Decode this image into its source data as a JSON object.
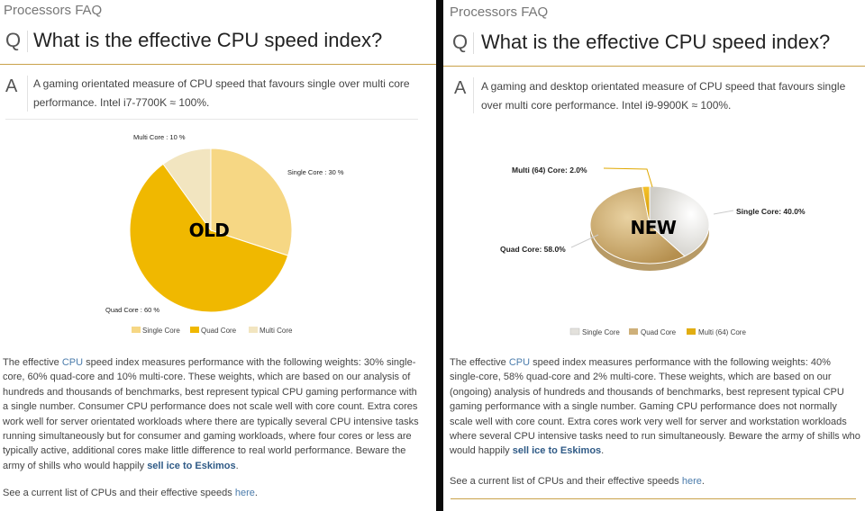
{
  "left": {
    "section_title": "Processors FAQ",
    "q_letter": "Q",
    "question": "What is the effective CPU speed index?",
    "a_letter": "A",
    "answer": "A gaming orientated measure of CPU speed that favours single over multi core performance. Intel i7-7700K ≈ 100%.",
    "chart_data": {
      "type": "pie",
      "title": "",
      "stamp": "OLD",
      "categories": [
        "Single Core",
        "Quad Core",
        "Multi Core"
      ],
      "values": [
        30,
        60,
        10
      ],
      "slice_labels": [
        "Single Core : 30 %",
        "Quad Core : 60 %",
        "Multi Core : 10 %"
      ],
      "legend": [
        "Single Core",
        "Quad Core",
        "Multi Core"
      ],
      "legend_position": "bottom",
      "colors": [
        "#f6d784",
        "#f0b800",
        "#f2e5c0"
      ]
    },
    "para_pre": "The effective ",
    "para_cpu": "CPU",
    "para_mid": " speed index measures performance with the following weights: 30% single-core, 60% quad-core and 10% multi-core. These weights, which are based on our analysis of hundreds and thousands of benchmarks, best represent typical CPU gaming performance with a single number. Consumer CPU performance does not scale well with core count. Extra cores work well for server orientated workloads where there are typically several CPU intensive tasks running simultaneously but for consumer and gaming workloads, where four cores or less are typically active, additional cores make little difference to real world performance. Beware the army of shills who would happily ",
    "para_link": "sell ice to Eskimos",
    "para_end": ".",
    "footer_pre": "See a current list of CPUs and their effective speeds ",
    "footer_link": "here",
    "footer_end": "."
  },
  "right": {
    "section_title": "Processors FAQ",
    "q_letter": "Q",
    "question": "What is the effective CPU speed index?",
    "a_letter": "A",
    "answer": "A gaming and desktop orientated measure of CPU speed that favours single over multi core performance. Intel i9-9900K ≈ 100%.",
    "chart_data": {
      "type": "pie",
      "title": "",
      "stamp": "NEW",
      "categories": [
        "Single Core",
        "Quad Core",
        "Multi (64) Core"
      ],
      "values": [
        40.0,
        58.0,
        2.0
      ],
      "slice_labels": [
        "Single Core: 40.0%",
        "Quad Core: 58.0%",
        "Multi (64) Core: 2.0%"
      ],
      "legend": [
        "Single Core",
        "Quad Core",
        "Multi (64) Core"
      ],
      "legend_position": "bottom",
      "colors": [
        "#e3e1dc",
        "#ceb07a",
        "#e1ad12"
      ]
    },
    "para_pre": "The effective ",
    "para_cpu": "CPU",
    "para_mid": " speed index measures performance with the following weights: 40% single-core, 58% quad-core and 2% multi-core. These weights, which are based on our (ongoing) analysis of hundreds and thousands of benchmarks, best represent typical CPU gaming performance with a single number. Gaming CPU performance does not normally scale well with core count. Extra cores work very well for server and workstation workloads where several CPU intensive tasks need to run simultaneously. Beware the army of shills who would happily ",
    "para_link": "sell ice to Eskimos",
    "para_end": ".",
    "footer_pre": "See a current list of CPUs and their effective speeds ",
    "footer_link": "here",
    "footer_end": "."
  }
}
